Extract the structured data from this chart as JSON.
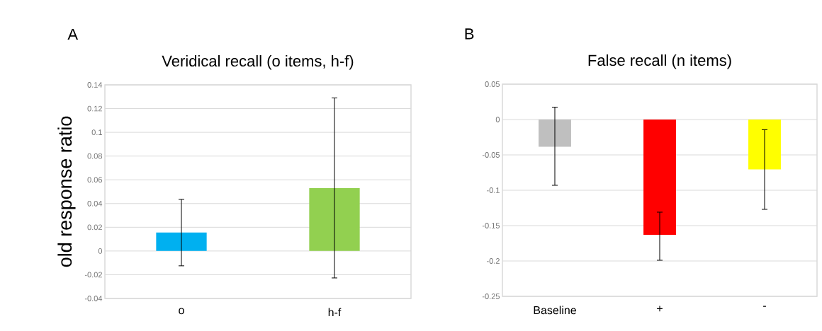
{
  "chart_data": [
    {
      "type": "bar",
      "title": "Veridical recall (o items, h-f)",
      "ylabel": "old response ratio",
      "annotations": [
        "A"
      ],
      "categories": [
        "o",
        "h-f"
      ],
      "values": [
        0.0155,
        0.053
      ],
      "colors": [
        "#00b0f0",
        "#92d050"
      ],
      "errors": [
        [
          -0.0125,
          0.0435
        ],
        [
          -0.0227,
          0.129
        ]
      ],
      "ylim": [
        -0.04,
        0.14
      ],
      "yticks": [
        -0.04,
        -0.02,
        0,
        0.02,
        0.04,
        0.06,
        0.08,
        0.1,
        0.12,
        0.14
      ],
      "grid": "y"
    },
    {
      "type": "bar",
      "title": "False recall (n items)",
      "annotations": [
        "B"
      ],
      "categories": [
        "Baseline",
        "+",
        "-"
      ],
      "values": [
        -0.0386,
        -0.163,
        -0.0705
      ],
      "colors": [
        "#bfbfbf",
        "#ff0000",
        "#ffff00"
      ],
      "errors": [
        [
          -0.093,
          0.0175
        ],
        [
          -0.199,
          -0.131
        ],
        [
          -0.127,
          -0.0144
        ]
      ],
      "ylim": [
        -0.25,
        0.05
      ],
      "yticks": [
        -0.25,
        -0.2,
        -0.15,
        -0.1,
        -0.05,
        0,
        0.05
      ],
      "grid": "y"
    }
  ]
}
